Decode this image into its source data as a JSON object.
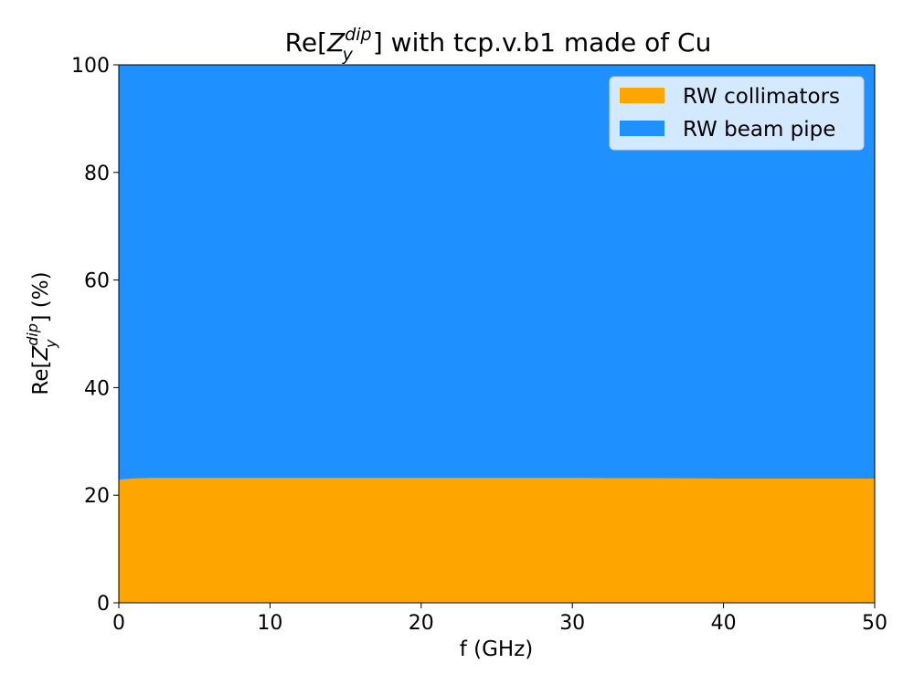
{
  "chart_data": {
    "type": "area",
    "title_parts": {
      "pre": "Re[",
      "z": "Z",
      "sub": "y",
      "sup": "dip",
      "post": "] with tcp.v.b1 made of Cu"
    },
    "xlabel": "f (GHz)",
    "ylabel_parts": {
      "pre": "Re[",
      "z": "Z",
      "sub": "y",
      "sup": "dip",
      "post": "] (%)"
    },
    "xlim": [
      0,
      50
    ],
    "ylim": [
      0,
      100
    ],
    "xticks": [
      0,
      10,
      20,
      30,
      40,
      50
    ],
    "yticks": [
      0,
      20,
      40,
      60,
      80,
      100
    ],
    "x": [
      0,
      1,
      2,
      5,
      10,
      20,
      30,
      40,
      50
    ],
    "series": [
      {
        "name": "RW collimators",
        "color": "#ffa500",
        "values": [
          22.9,
          23.1,
          23.2,
          23.2,
          23.2,
          23.2,
          23.2,
          23.1,
          23.1
        ]
      },
      {
        "name": "RW beam pipe",
        "color": "#1e90ff",
        "values": [
          77.1,
          76.9,
          76.8,
          76.8,
          76.8,
          76.8,
          76.8,
          76.9,
          76.9
        ]
      }
    ],
    "stacked": true,
    "grid": false,
    "legend_position": "top-right"
  }
}
